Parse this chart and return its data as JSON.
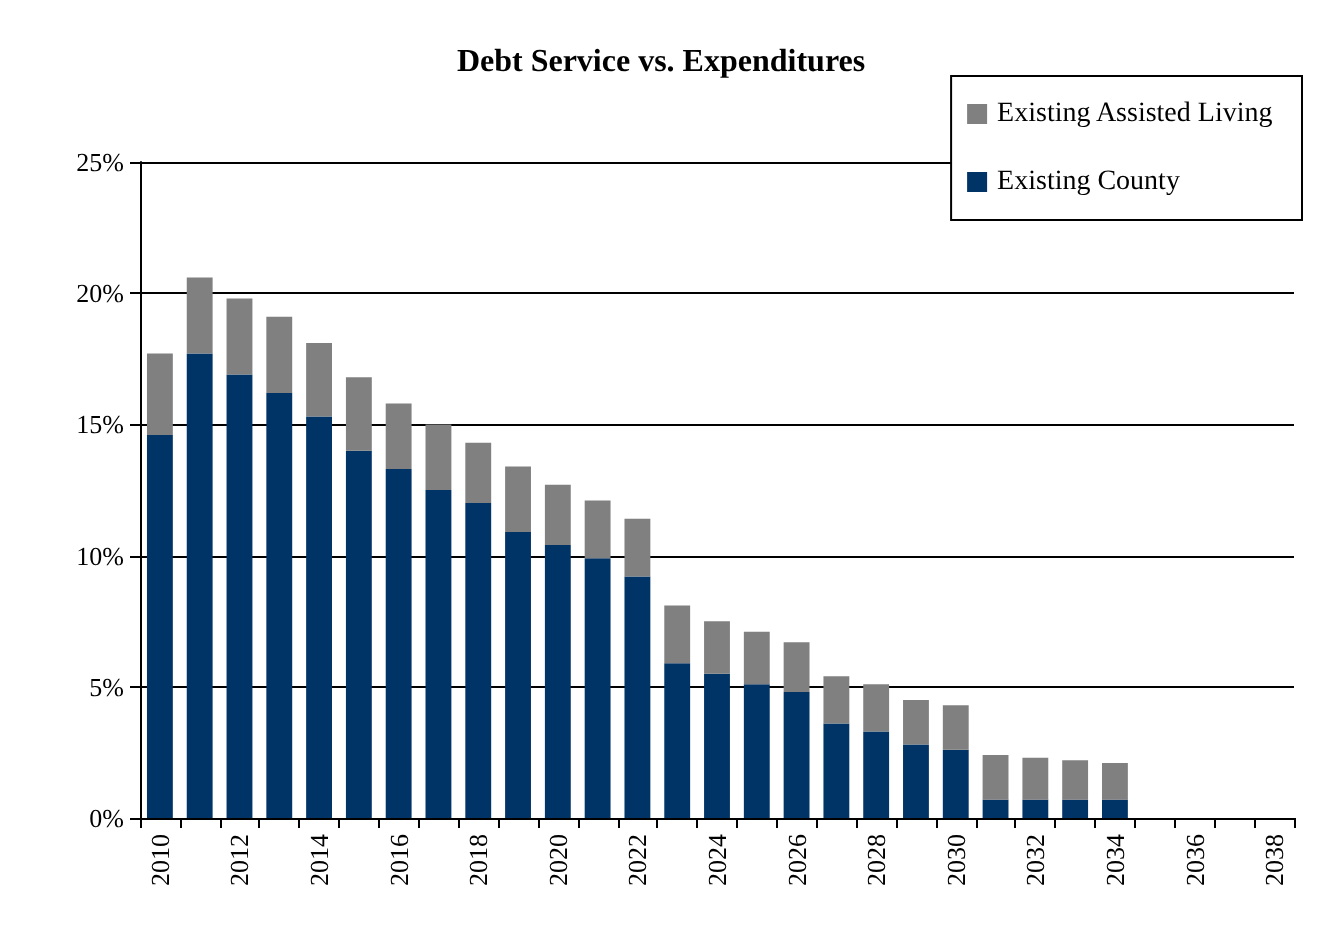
{
  "chart_data": {
    "type": "bar",
    "title": "Debt Service vs. Expenditures",
    "stacked": true,
    "grid": "y",
    "legend": "top right",
    "categories": [
      "2010",
      null,
      "2012",
      null,
      "2014",
      null,
      "2016",
      null,
      "2018",
      null,
      "2020",
      null,
      "2022",
      null,
      "2024",
      null,
      "2026",
      null,
      "2028",
      null,
      "2030",
      null,
      "2032",
      null,
      "2034",
      null,
      "2036",
      null,
      "2038"
    ],
    "ylim": [
      0,
      25
    ],
    "yticks": [
      {
        "value": 0,
        "label": "0%"
      },
      {
        "value": 5,
        "label": "5%"
      },
      {
        "value": 10,
        "label": "10%"
      },
      {
        "value": 15,
        "label": "15%"
      },
      {
        "value": 20,
        "label": "20%"
      },
      {
        "value": 25,
        "label": "25%"
      }
    ],
    "series": [
      {
        "name": "Existing County",
        "color": "#003366",
        "values": [
          14.6,
          17.7,
          16.9,
          16.2,
          15.3,
          14.0,
          13.3,
          12.5,
          12.0,
          10.9,
          10.4,
          9.9,
          9.2,
          5.9,
          5.5,
          5.1,
          4.8,
          3.6,
          3.3,
          2.8,
          2.6,
          0.7,
          0.7,
          0.7,
          0.7,
          0,
          0,
          0,
          0
        ]
      },
      {
        "name": "Existing Assisted Living",
        "color": "#808080",
        "values": [
          3.1,
          2.9,
          2.9,
          2.9,
          2.8,
          2.8,
          2.5,
          2.5,
          2.3,
          2.5,
          2.3,
          2.2,
          2.2,
          2.2,
          2.0,
          2.0,
          1.9,
          1.8,
          1.8,
          1.7,
          1.7,
          1.7,
          1.6,
          1.5,
          1.4,
          0,
          0,
          0,
          0
        ]
      }
    ]
  }
}
